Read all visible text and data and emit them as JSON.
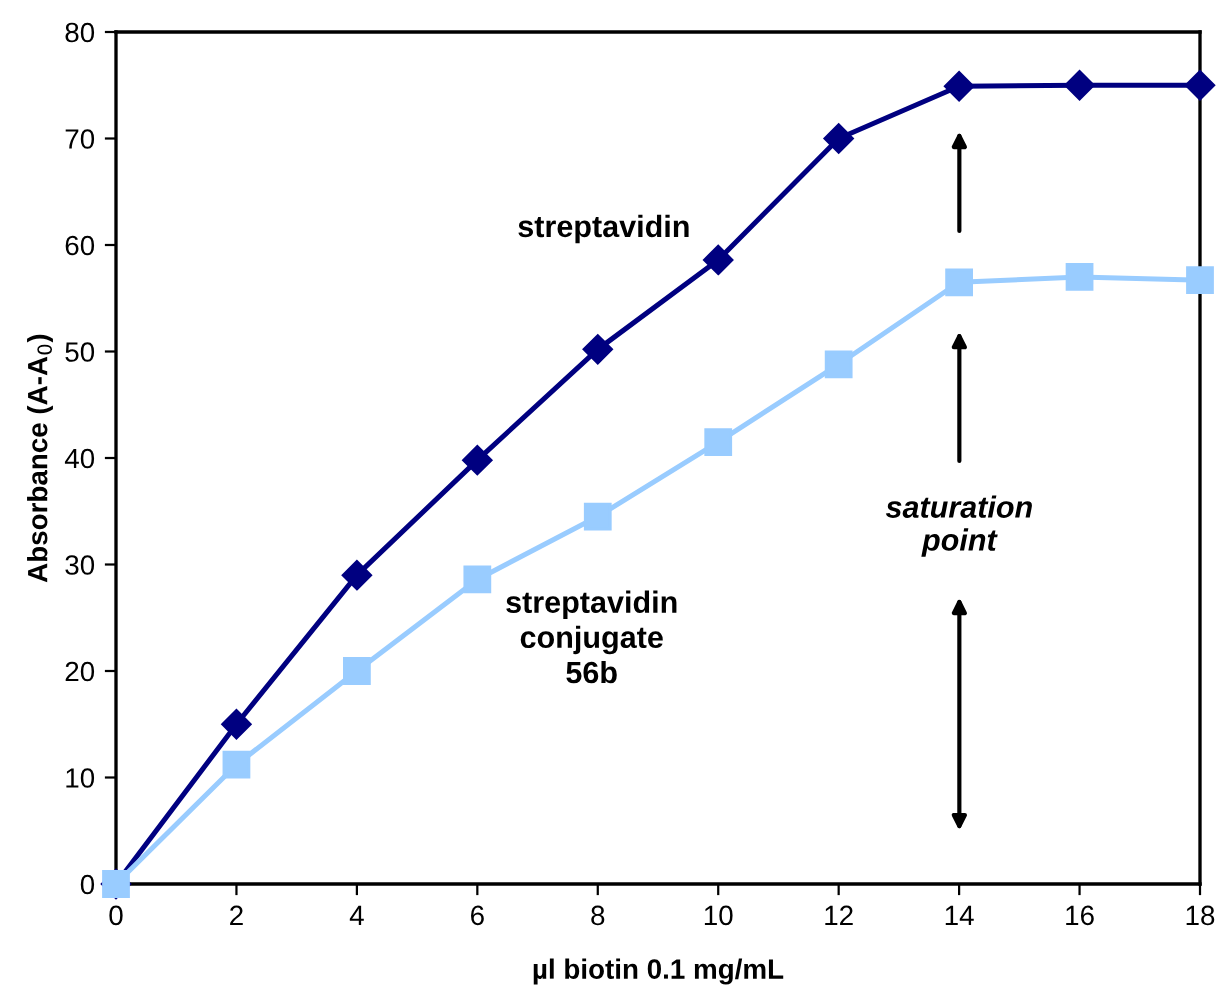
{
  "chart_data": {
    "type": "line",
    "xlabel": "µl biotin 0.1 mg/mL",
    "ylabel": "Absorbance (A-A$_{0}$)",
    "x": [
      0,
      2,
      4,
      6,
      8,
      10,
      12,
      14,
      16,
      18
    ],
    "series": [
      {
        "name": "streptavidin",
        "color": "#000080",
        "marker": "diamond",
        "values": [
          0,
          15,
          29,
          39.8,
          50.2,
          58.6,
          70,
          74.9,
          75,
          75
        ]
      },
      {
        "name": "streptavidin\nconjugate\n56b",
        "color": "#99ccff",
        "marker": "square",
        "values": [
          0,
          11.2,
          20,
          28.6,
          34.5,
          41.5,
          48.8,
          56.5,
          57,
          56.7
        ]
      }
    ],
    "xlim": [
      0,
      18
    ],
    "xticks": [
      0,
      2,
      4,
      6,
      8,
      10,
      12,
      14,
      16,
      18
    ],
    "ylim": [
      0,
      80
    ],
    "yticks": [
      0,
      10,
      20,
      30,
      40,
      50,
      60,
      70,
      80
    ],
    "grid": false,
    "legend": false,
    "annotations": [
      "saturation\npoint"
    ]
  }
}
